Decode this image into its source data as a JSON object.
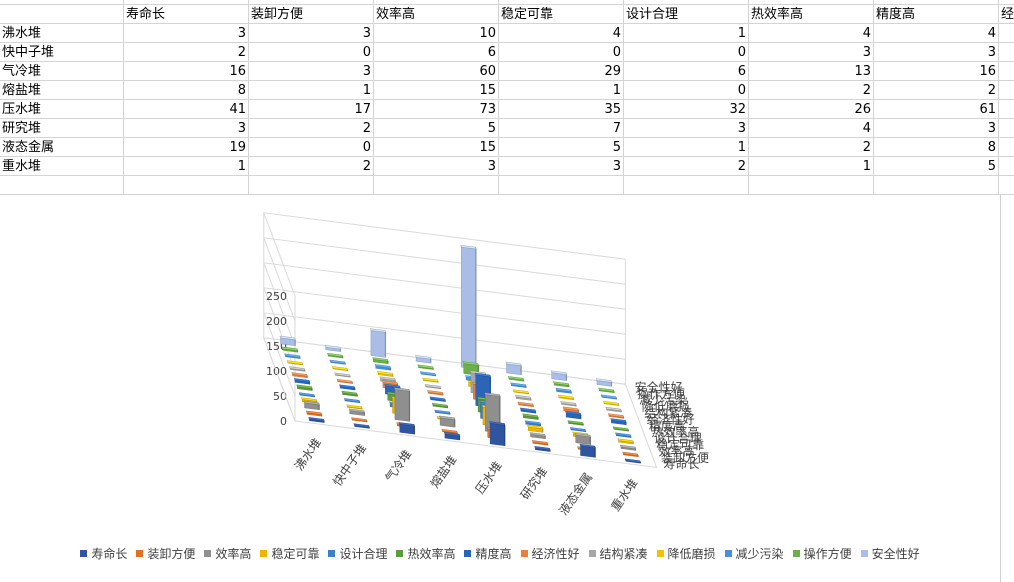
{
  "sheet": {
    "columns": [
      "寿命长",
      "装卸方便",
      "效率高",
      "稳定可靠",
      "设计合理",
      "热效率高",
      "精度高",
      "经"
    ],
    "rows": [
      {
        "label": "沸水堆",
        "values": [
          3,
          3,
          10,
          4,
          1,
          4,
          4
        ]
      },
      {
        "label": "快中子堆",
        "values": [
          2,
          0,
          6,
          0,
          0,
          3,
          3
        ]
      },
      {
        "label": "气冷堆",
        "values": [
          16,
          3,
          60,
          29,
          6,
          13,
          16
        ]
      },
      {
        "label": "熔盐堆",
        "values": [
          8,
          1,
          15,
          1,
          0,
          2,
          2
        ]
      },
      {
        "label": "压水堆",
        "values": [
          41,
          17,
          73,
          35,
          32,
          26,
          61
        ]
      },
      {
        "label": "研究堆",
        "values": [
          3,
          2,
          5,
          7,
          3,
          4,
          3
        ]
      },
      {
        "label": "液态金属",
        "values": [
          19,
          0,
          15,
          5,
          1,
          2,
          8
        ]
      },
      {
        "label": "重水堆",
        "values": [
          1,
          2,
          3,
          3,
          2,
          1,
          5
        ]
      }
    ]
  },
  "chart_data": {
    "type": "bar",
    "categories": [
      "沸水堆",
      "快中子堆",
      "气冷堆",
      "熔盐堆",
      "压水堆",
      "研究堆",
      "液态金属",
      "重水堆"
    ],
    "series": [
      {
        "name": "寿命长",
        "color": "#2f55a0",
        "values": [
          3,
          2,
          16,
          8,
          41,
          3,
          19,
          1
        ]
      },
      {
        "name": "装卸方便",
        "color": "#e0702a",
        "values": [
          3,
          0,
          3,
          1,
          17,
          2,
          0,
          2
        ]
      },
      {
        "name": "效率高",
        "color": "#8f8f8f",
        "values": [
          10,
          6,
          60,
          15,
          73,
          5,
          15,
          3
        ]
      },
      {
        "name": "稳定可靠",
        "color": "#f0b400",
        "values": [
          4,
          0,
          29,
          1,
          35,
          7,
          5,
          3
        ]
      },
      {
        "name": "设计合理",
        "color": "#3f7fc8",
        "values": [
          1,
          0,
          6,
          0,
          32,
          3,
          1,
          2
        ]
      },
      {
        "name": "热效率高",
        "color": "#5c9c3a",
        "values": [
          4,
          3,
          13,
          2,
          26,
          4,
          2,
          1
        ]
      },
      {
        "name": "精度高",
        "color": "#2a65b8",
        "values": [
          4,
          3,
          16,
          2,
          61,
          3,
          8,
          5
        ]
      },
      {
        "name": "经济性好",
        "color": "#e87f42",
        "values": [
          3,
          1,
          10,
          2,
          30,
          2,
          4,
          2
        ]
      },
      {
        "name": "结构紧凑",
        "color": "#a6a6a6",
        "values": [
          2,
          1,
          5,
          1,
          40,
          3,
          2,
          2
        ]
      },
      {
        "name": "降低磨损",
        "color": "#f5c000",
        "values": [
          1,
          0,
          3,
          1,
          8,
          1,
          2,
          1
        ]
      },
      {
        "name": "减少污染",
        "color": "#4a90d6",
        "values": [
          2,
          1,
          4,
          1,
          5,
          2,
          3,
          1
        ]
      },
      {
        "name": "操作方便",
        "color": "#6bb04a",
        "values": [
          3,
          2,
          5,
          2,
          20,
          2,
          3,
          2
        ]
      },
      {
        "name": "安全性好",
        "color": "#a9bde6",
        "values": [
          12,
          5,
          50,
          8,
          240,
          18,
          12,
          8
        ]
      }
    ],
    "zlim": [
      0,
      250
    ],
    "zticks": [
      "0",
      "50",
      "100",
      "150",
      "200",
      "250"
    ],
    "grid": true,
    "legend": "bottom"
  }
}
